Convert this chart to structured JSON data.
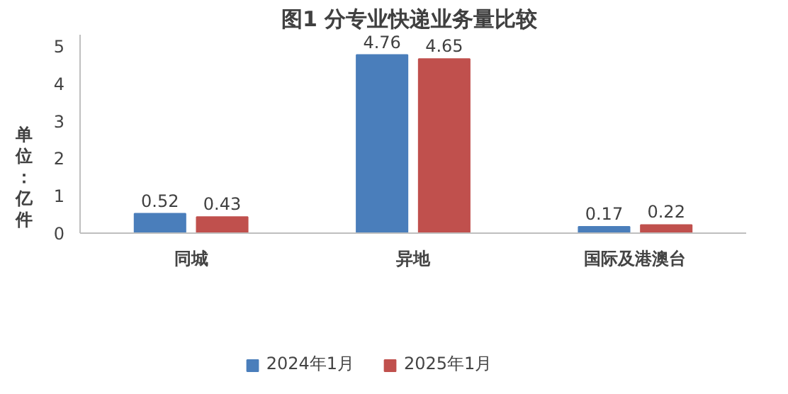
{
  "chart_data": {
    "type": "bar",
    "title": "图1  分专业快递业务量比较",
    "ylabel": "单位：亿件",
    "categories": [
      "同城",
      "异地",
      "国际及港澳台"
    ],
    "series": [
      {
        "name": "2024年1月",
        "color": "#4a7ebb",
        "values": [
          0.52,
          4.76,
          0.17
        ]
      },
      {
        "name": "2025年1月",
        "color": "#c0504d",
        "values": [
          0.43,
          4.65,
          0.22
        ]
      }
    ],
    "ylim": [
      0,
      5.3
    ],
    "yticks": [
      0,
      1,
      2,
      3,
      4,
      5
    ],
    "data_labels": true,
    "legend": "bottom",
    "grid": false
  }
}
